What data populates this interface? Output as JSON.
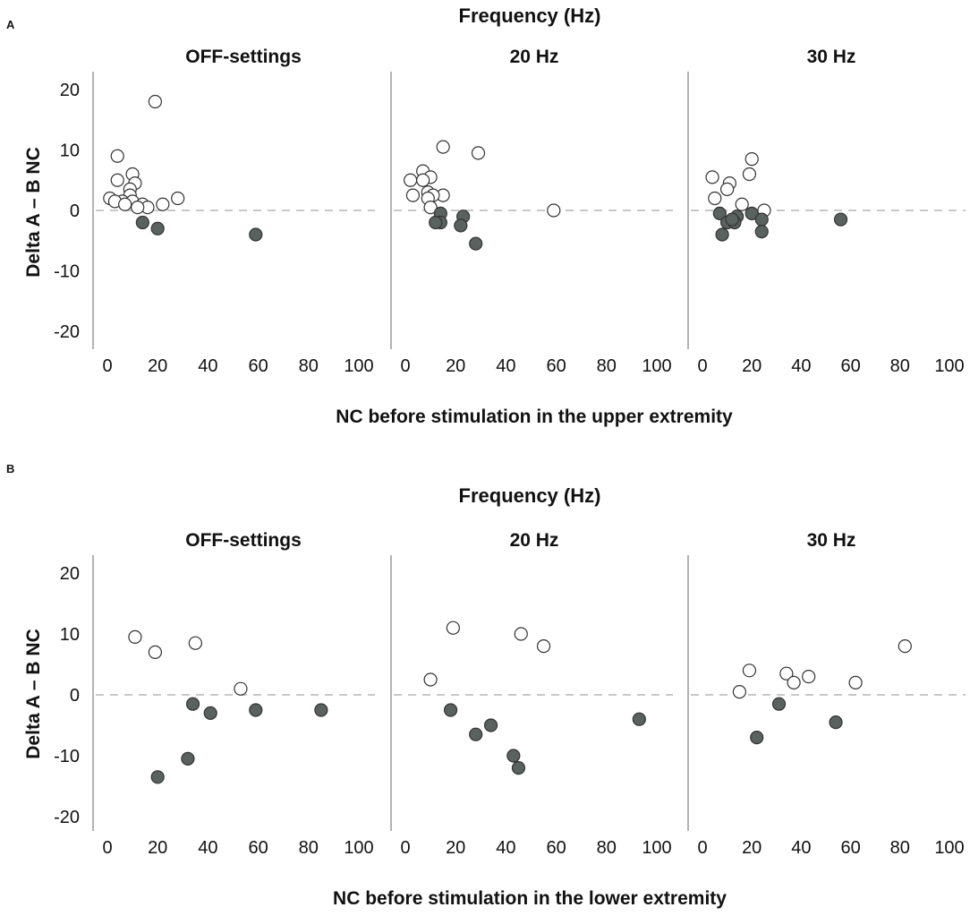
{
  "chart_data": [
    {
      "type": "scatter",
      "panel_label": "A",
      "title": "Frequency (Hz)",
      "ylabel": "Delta A – B NC",
      "xlabel": "NC before stimulation in the upper extremity",
      "xlim": [
        0,
        100
      ],
      "ylim": [
        -20,
        20
      ],
      "xticks": [
        "0",
        "20",
        "40",
        "60",
        "80",
        "100"
      ],
      "yticks": [
        "20",
        "10",
        "0",
        "-10",
        "-20"
      ],
      "reference_line": 0,
      "marker_styles": {
        "positive": "open-circle",
        "negative": "filled-circle"
      },
      "colors": {
        "filled": "#5a625f",
        "stroke": "#333333",
        "reference": "#c8c8c8",
        "axis": "#9a9a9a"
      },
      "facets": [
        {
          "name": "OFF-settings",
          "points": [
            {
              "x": 19,
              "y": 18
            },
            {
              "x": 4,
              "y": 9
            },
            {
              "x": 10,
              "y": 6
            },
            {
              "x": 4,
              "y": 5
            },
            {
              "x": 11,
              "y": 4.5
            },
            {
              "x": 9,
              "y": 3.5
            },
            {
              "x": 9,
              "y": 2.5
            },
            {
              "x": 1,
              "y": 2
            },
            {
              "x": 28,
              "y": 2
            },
            {
              "x": 6,
              "y": 1.5
            },
            {
              "x": 3,
              "y": 1.5
            },
            {
              "x": 10,
              "y": 1.5
            },
            {
              "x": 22,
              "y": 1
            },
            {
              "x": 14,
              "y": 1
            },
            {
              "x": 7,
              "y": 1
            },
            {
              "x": 16,
              "y": 0.5
            },
            {
              "x": 12,
              "y": 0.5
            },
            {
              "x": 14,
              "y": -2
            },
            {
              "x": 20,
              "y": -3
            },
            {
              "x": 59,
              "y": -4
            }
          ]
        },
        {
          "name": "20 Hz",
          "points": [
            {
              "x": 15,
              "y": 10.5
            },
            {
              "x": 29,
              "y": 9.5
            },
            {
              "x": 7,
              "y": 6.5
            },
            {
              "x": 2,
              "y": 5
            },
            {
              "x": 10,
              "y": 5.5
            },
            {
              "x": 7,
              "y": 5
            },
            {
              "x": 9,
              "y": 3
            },
            {
              "x": 3,
              "y": 2.5
            },
            {
              "x": 15,
              "y": 2.5
            },
            {
              "x": 11,
              "y": 2.5
            },
            {
              "x": 9,
              "y": 2
            },
            {
              "x": 10,
              "y": 0.5
            },
            {
              "x": 14,
              "y": -0.5
            },
            {
              "x": 59,
              "y": 0
            },
            {
              "x": 23,
              "y": -1
            },
            {
              "x": 14,
              "y": -2
            },
            {
              "x": 12,
              "y": -2
            },
            {
              "x": 22,
              "y": -2.5
            },
            {
              "x": 28,
              "y": -5.5
            }
          ]
        },
        {
          "name": "30 Hz",
          "points": [
            {
              "x": 20,
              "y": 8.5
            },
            {
              "x": 19,
              "y": 6
            },
            {
              "x": 4,
              "y": 5.5
            },
            {
              "x": 11,
              "y": 4.5
            },
            {
              "x": 10,
              "y": 3.5
            },
            {
              "x": 5,
              "y": 2
            },
            {
              "x": 16,
              "y": 1
            },
            {
              "x": 25,
              "y": 0
            },
            {
              "x": 7,
              "y": -0.5
            },
            {
              "x": 20,
              "y": -0.5
            },
            {
              "x": 14,
              "y": -1
            },
            {
              "x": 10,
              "y": -2
            },
            {
              "x": 13,
              "y": -2
            },
            {
              "x": 12,
              "y": -1.5
            },
            {
              "x": 24,
              "y": -1.5
            },
            {
              "x": 56,
              "y": -1.5
            },
            {
              "x": 24,
              "y": -3.5
            },
            {
              "x": 8,
              "y": -4
            }
          ]
        }
      ]
    },
    {
      "type": "scatter",
      "panel_label": "B",
      "title": "Frequency (Hz)",
      "ylabel": "Delta A – B NC",
      "xlabel": "NC before stimulation in the lower extremity",
      "xlim": [
        0,
        100
      ],
      "ylim": [
        -20,
        20
      ],
      "xticks": [
        "0",
        "20",
        "40",
        "60",
        "80",
        "100"
      ],
      "yticks": [
        "20",
        "10",
        "0",
        "-10",
        "-20"
      ],
      "reference_line": 0,
      "marker_styles": {
        "positive": "open-circle",
        "negative": "filled-circle"
      },
      "colors": {
        "filled": "#5a625f",
        "stroke": "#333333",
        "reference": "#c8c8c8",
        "axis": "#9a9a9a"
      },
      "facets": [
        {
          "name": "OFF-settings",
          "points": [
            {
              "x": 11,
              "y": 9.5
            },
            {
              "x": 19,
              "y": 7
            },
            {
              "x": 35,
              "y": 8.5
            },
            {
              "x": 53,
              "y": 1
            },
            {
              "x": 34,
              "y": -1.5
            },
            {
              "x": 41,
              "y": -3
            },
            {
              "x": 59,
              "y": -2.5
            },
            {
              "x": 85,
              "y": -2.5
            },
            {
              "x": 32,
              "y": -10.5
            },
            {
              "x": 20,
              "y": -13.5
            }
          ]
        },
        {
          "name": "20 Hz",
          "points": [
            {
              "x": 19,
              "y": 11
            },
            {
              "x": 46,
              "y": 10
            },
            {
              "x": 55,
              "y": 8
            },
            {
              "x": 10,
              "y": 2.5
            },
            {
              "x": 18,
              "y": -2.5
            },
            {
              "x": 34,
              "y": -5
            },
            {
              "x": 28,
              "y": -6.5
            },
            {
              "x": 93,
              "y": -4
            },
            {
              "x": 43,
              "y": -10
            },
            {
              "x": 45,
              "y": -12
            }
          ]
        },
        {
          "name": "30 Hz",
          "points": [
            {
              "x": 82,
              "y": 8
            },
            {
              "x": 19,
              "y": 4
            },
            {
              "x": 34,
              "y": 3.5
            },
            {
              "x": 43,
              "y": 3
            },
            {
              "x": 37,
              "y": 2
            },
            {
              "x": 62,
              "y": 2
            },
            {
              "x": 15,
              "y": 0.5
            },
            {
              "x": 31,
              "y": -1.5
            },
            {
              "x": 54,
              "y": -4.5
            },
            {
              "x": 22,
              "y": -7
            }
          ]
        }
      ]
    }
  ]
}
